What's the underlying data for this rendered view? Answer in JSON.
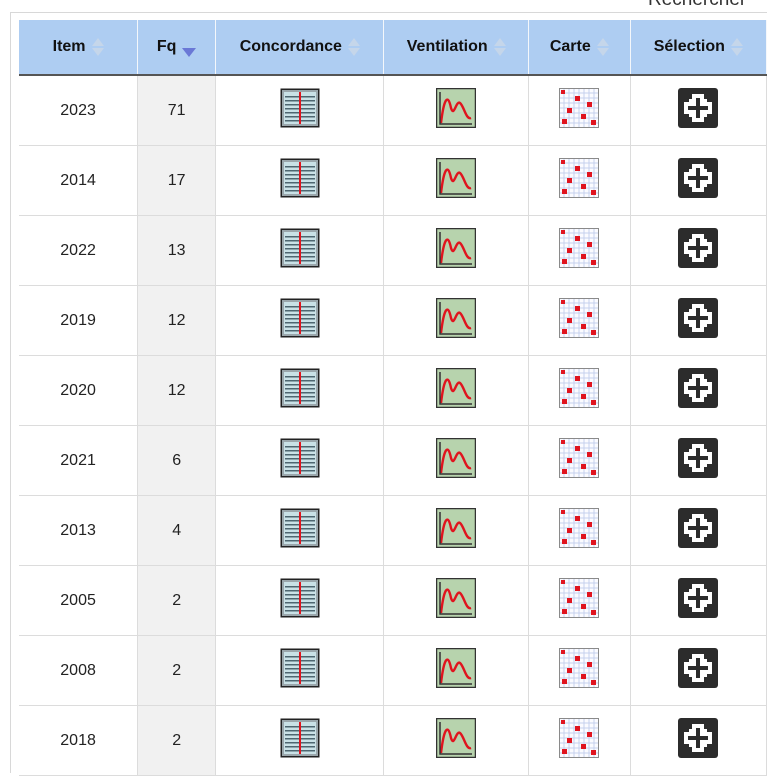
{
  "page": {
    "top_text": "Rechercher"
  },
  "table": {
    "headers": {
      "item": "Item",
      "fq": "Fq",
      "concordance": "Concordance",
      "ventilation": "Ventilation",
      "carte": "Carte",
      "selection": "Sélection"
    },
    "sorted_column": "Fq",
    "sort_direction": "descending",
    "rows": [
      {
        "item": "2023",
        "fq": "71"
      },
      {
        "item": "2014",
        "fq": "17"
      },
      {
        "item": "2022",
        "fq": "13"
      },
      {
        "item": "2019",
        "fq": "12"
      },
      {
        "item": "2020",
        "fq": "12"
      },
      {
        "item": "2021",
        "fq": "6"
      },
      {
        "item": "2013",
        "fq": "4"
      },
      {
        "item": "2005",
        "fq": "2"
      },
      {
        "item": "2008",
        "fq": "2"
      },
      {
        "item": "2018",
        "fq": "2"
      }
    ]
  },
  "icons": {
    "concordance": "concordance-icon",
    "ventilation": "ventilation-chart-icon",
    "carte": "map-grid-icon",
    "selection": "add-selection-icon"
  },
  "colors": {
    "header_bg": "#aecdf2",
    "sort_active": "#6a78d6",
    "icon_red": "#e0141e",
    "fq_column_bg": "#f1f1f1"
  }
}
